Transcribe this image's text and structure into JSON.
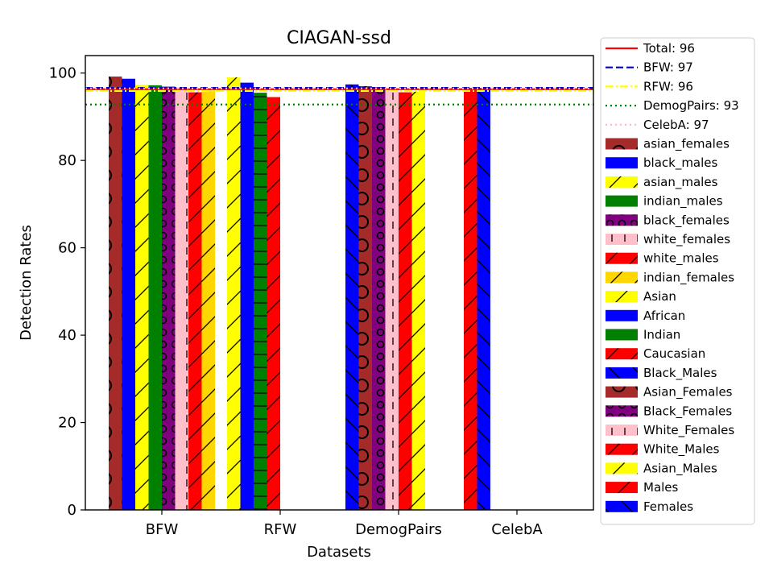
{
  "chart_data": {
    "type": "bar",
    "title": "CIAGAN-ssd",
    "xlabel": "Datasets",
    "ylabel": "Detection Rates",
    "ylim": [
      0,
      104
    ],
    "yticks": [
      0,
      20,
      40,
      60,
      80,
      100
    ],
    "categories": [
      "BFW",
      "RFW",
      "DemogPairs",
      "CelebA"
    ],
    "legend_position": "outside-right",
    "reference_lines": [
      {
        "label": "Total: 96",
        "value": 96.3,
        "color": "#ff0000",
        "style": "solid"
      },
      {
        "label": "BFW: 97",
        "value": 96.6,
        "color": "#0000cc",
        "style": "dashed"
      },
      {
        "label": "RFW: 96",
        "value": 95.9,
        "color": "#ffff00",
        "style": "dashdot"
      },
      {
        "label": "DemogPairs: 93",
        "value": 92.8,
        "color": "#008000",
        "style": "dotted"
      },
      {
        "label": "CelebA: 97",
        "value": 96.5,
        "color": "#ffb6c1",
        "style": "dotted"
      }
    ],
    "groups": [
      {
        "category": "BFW",
        "bars": [
          {
            "series": "asian_females",
            "value": 99.2
          },
          {
            "series": "black_males",
            "value": 98.7
          },
          {
            "series": "asian_males",
            "value": 97.3
          },
          {
            "series": "indian_males",
            "value": 97.2
          },
          {
            "series": "black_females",
            "value": 96.9
          },
          {
            "series": "white_females",
            "value": 96.4
          },
          {
            "series": "white_males",
            "value": 95.6
          },
          {
            "series": "indian_females",
            "value": 96.0
          }
        ]
      },
      {
        "category": "RFW",
        "bars": [
          {
            "series": "Asian",
            "value": 99.0
          },
          {
            "series": "African",
            "value": 97.8
          },
          {
            "series": "Indian",
            "value": 95.5
          },
          {
            "series": "Caucasian",
            "value": 94.5
          }
        ]
      },
      {
        "category": "DemogPairs",
        "bars": [
          {
            "series": "Black_Males",
            "value": 97.4
          },
          {
            "series": "Asian_Females",
            "value": 97.0
          },
          {
            "series": "Black_Females",
            "value": 96.8
          },
          {
            "series": "White_Females",
            "value": 96.0
          },
          {
            "series": "White_Males",
            "value": 95.6
          },
          {
            "series": "Asian_Males",
            "value": 95.8
          }
        ]
      },
      {
        "category": "CelebA",
        "bars": [
          {
            "series": "Males",
            "value": 96.6
          },
          {
            "series": "Females",
            "value": 96.6
          }
        ]
      }
    ],
    "series_styles": [
      {
        "name": "asian_females",
        "color": "#a52a2a",
        "hatch": "O"
      },
      {
        "name": "black_males",
        "color": "#0000ff",
        "hatch": "none"
      },
      {
        "name": "asian_males",
        "color": "#ffff00",
        "hatch": "slash"
      },
      {
        "name": "indian_males",
        "color": "#008000",
        "hatch": "none"
      },
      {
        "name": "black_females",
        "color": "#800080",
        "hatch": "o"
      },
      {
        "name": "white_females",
        "color": "#ffc0cb",
        "hatch": "vbar"
      },
      {
        "name": "white_males",
        "color": "#ff0000",
        "hatch": "slash"
      },
      {
        "name": "indian_females",
        "color": "#ffd700",
        "hatch": "slash"
      },
      {
        "name": "Asian",
        "color": "#ffff00",
        "hatch": "slash"
      },
      {
        "name": "African",
        "color": "#0000ff",
        "hatch": "none"
      },
      {
        "name": "Indian",
        "color": "#008000",
        "hatch": "hline"
      },
      {
        "name": "Caucasian",
        "color": "#ff0000",
        "hatch": "slash"
      },
      {
        "name": "Black_Males",
        "color": "#0000ff",
        "hatch": "backslash"
      },
      {
        "name": "Asian_Females",
        "color": "#a52a2a",
        "hatch": "O"
      },
      {
        "name": "Black_Females",
        "color": "#800080",
        "hatch": "o"
      },
      {
        "name": "White_Females",
        "color": "#ffc0cb",
        "hatch": "plus"
      },
      {
        "name": "White_Males",
        "color": "#ff0000",
        "hatch": "slash"
      },
      {
        "name": "Asian_Males",
        "color": "#ffff00",
        "hatch": "slash"
      },
      {
        "name": "Males",
        "color": "#ff0000",
        "hatch": "slash"
      },
      {
        "name": "Females",
        "color": "#0000ff",
        "hatch": "backslash"
      }
    ]
  }
}
